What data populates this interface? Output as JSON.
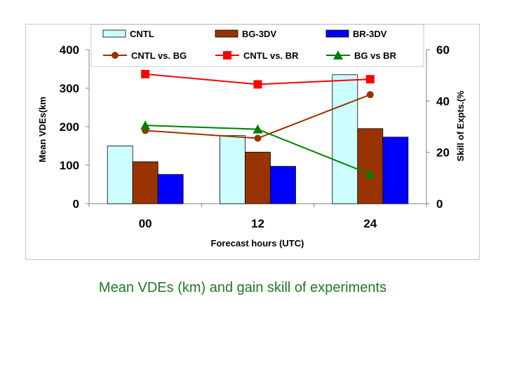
{
  "chart_data": {
    "type": "bar",
    "categories": [
      "00",
      "12",
      "24"
    ],
    "series": [
      {
        "name": "CNTL",
        "kind": "bar",
        "axis": "left",
        "color": "#ccffff",
        "values": [
          150,
          177,
          335
        ]
      },
      {
        "name": "BG-3DV",
        "kind": "bar",
        "axis": "left",
        "color": "#993300",
        "values": [
          109,
          134,
          195
        ]
      },
      {
        "name": "BR-3DV",
        "kind": "bar",
        "axis": "left",
        "color": "#0000ff",
        "values": [
          76,
          97,
          173
        ]
      }
    ],
    "lines": [
      {
        "name": "CNTL vs. BG",
        "kind": "line",
        "marker": "circle",
        "axis": "right",
        "color": "#993300",
        "values": [
          28.5,
          25.5,
          42.5
        ]
      },
      {
        "name": "CNTL vs. BR",
        "kind": "line",
        "marker": "square",
        "axis": "right",
        "color": "#ff0000",
        "values": [
          50.5,
          46.5,
          48.5
        ]
      },
      {
        "name": "BG vs BR",
        "kind": "line",
        "marker": "triangle",
        "axis": "right",
        "color": "#008000",
        "values": [
          30.5,
          29,
          11.5
        ]
      }
    ],
    "left_axis": {
      "label": "Mean VDEs(km",
      "ylim": [
        0,
        400
      ],
      "ticks": [
        "0",
        "100",
        "200",
        "300",
        "400"
      ]
    },
    "right_axis": {
      "label": "Skill of Expts.(%",
      "ylim": [
        0,
        60
      ],
      "ticks": [
        "0",
        "20",
        "40",
        "60"
      ]
    },
    "xlabel": "Forecast hours (UTC)",
    "legend_position": "top",
    "grid": false
  },
  "caption": "Mean VDEs (km) and gain skill of experiments"
}
